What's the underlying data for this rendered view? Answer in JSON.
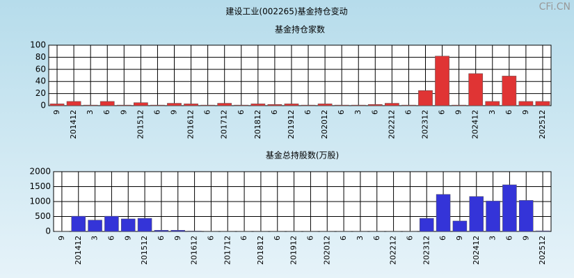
{
  "title": "建设工业(002265)基金持仓变动",
  "watermark": "CFi.CN",
  "chart_data": [
    {
      "type": "bar",
      "title": "基金持仓家数",
      "categories": [
        "9",
        "201412",
        "3",
        "6",
        "9",
        "201512",
        "6",
        "9",
        "201612",
        "6",
        "201712",
        "6",
        "201812",
        "6",
        "201912",
        "6",
        "202012",
        "6",
        "3",
        "6",
        "202212",
        "6",
        "202312",
        "6",
        "9",
        "202412",
        "3",
        "6",
        "9",
        "202512"
      ],
      "values": [
        3,
        7,
        1,
        7,
        1,
        5,
        1,
        4,
        3,
        1,
        4,
        1,
        3,
        2,
        3,
        1,
        3,
        1,
        1,
        2,
        4,
        1,
        25,
        82,
        1,
        53,
        7,
        49,
        7,
        7
      ],
      "color": "#e03434",
      "ylim": [
        0,
        100
      ],
      "yticks": [
        0,
        20,
        40,
        60,
        80,
        100
      ],
      "grid": true
    },
    {
      "type": "bar",
      "title": "基金总持股数(万股)",
      "categories": [
        "9",
        "201412",
        "3",
        "6",
        "9",
        "201512",
        "6",
        "9",
        "201612",
        "6",
        "201712",
        "6",
        "201812",
        "6",
        "201912",
        "6",
        "202012",
        "6",
        "3",
        "6",
        "202212",
        "6",
        "202312",
        "6",
        "9",
        "202412",
        "3",
        "6",
        "9",
        "202512"
      ],
      "values": [
        10,
        510,
        380,
        510,
        420,
        440,
        40,
        40,
        15,
        10,
        10,
        10,
        10,
        10,
        10,
        10,
        10,
        10,
        10,
        10,
        10,
        10,
        440,
        1240,
        350,
        1170,
        1020,
        1560,
        1040,
        20
      ],
      "color": "#3434d8",
      "ylim": [
        0,
        2000
      ],
      "yticks": [
        0,
        500,
        1000,
        1500,
        2000
      ],
      "grid": true
    }
  ]
}
